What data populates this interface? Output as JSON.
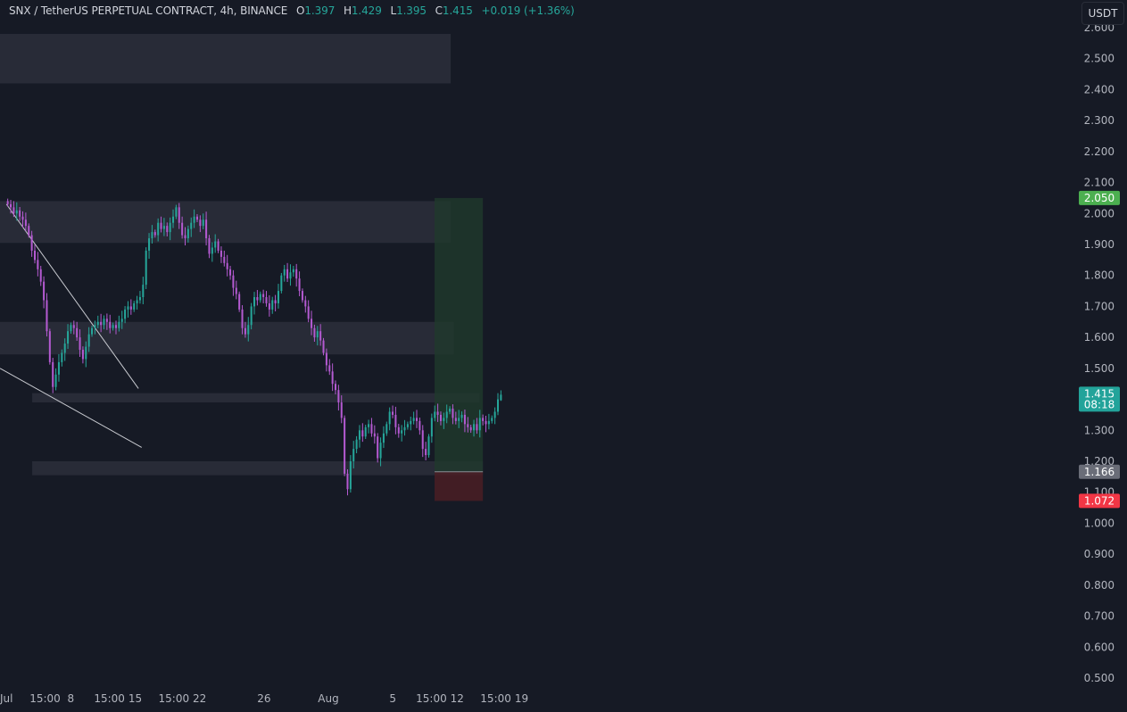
{
  "header": {
    "symbol": "SNX / TetherUS PERPETUAL CONTRACT, 4h, BINANCE",
    "o_label": "O",
    "o_value": "1.397",
    "h_label": "H",
    "h_value": "1.429",
    "l_label": "L",
    "l_value": "1.395",
    "c_label": "C",
    "c_value": "1.415",
    "change": "+0.019 (+1.36%)"
  },
  "currency_button": "USDT",
  "colors": {
    "background": "#161a25",
    "up": "#26a69a",
    "down": "#b45ad1",
    "grid_text": "#b2b5be",
    "zone": "#2c2f3b",
    "target_zone": "#1f3a2c",
    "stop_zone": "#4a1f25",
    "target_label": "#4caf50",
    "stop_label": "#f23645",
    "price_label": "#22a39a",
    "entry_label": "#6a6d78"
  },
  "chart_data": {
    "type": "candlestick",
    "title": "SNX / TetherUS PERPETUAL CONTRACT, 4h, BINANCE",
    "y_axis": {
      "ticks": [
        "2.600",
        "2.500",
        "2.400",
        "2.300",
        "2.200",
        "2.100",
        "2.000",
        "1.900",
        "1.800",
        "1.700",
        "1.600",
        "1.500",
        "1.400",
        "1.300",
        "1.200",
        "1.100",
        "1.000",
        "0.900",
        "0.800",
        "0.700",
        "0.600",
        "0.500"
      ],
      "range": [
        0.47,
        2.63
      ]
    },
    "x_axis": {
      "labels": [
        "Jul",
        "15:00",
        "8",
        "15:00",
        "15",
        "15:00",
        "22",
        "26",
        "Aug",
        "5",
        "15:00",
        "12",
        "15:00",
        "19"
      ],
      "range_days": [
        3.9,
        20.6
      ],
      "label_days": [
        4.0,
        4.6,
        5.0,
        5.6,
        6.0,
        6.6,
        7.0,
        8.0,
        9.0,
        10.0,
        10.6,
        11.0,
        11.6,
        12.0
      ]
    },
    "price_labels": [
      {
        "text": "2.050",
        "price": 2.05,
        "role": "target"
      },
      {
        "text": "1.415",
        "price": 1.415,
        "role": "last"
      },
      {
        "text": "08:18",
        "price": 1.415,
        "role": "countdown"
      },
      {
        "text": "1.166",
        "price": 1.166,
        "role": "entry"
      },
      {
        "text": "1.072",
        "price": 1.072,
        "role": "stop"
      }
    ],
    "zones": [
      {
        "day_start": 3.9,
        "day_end": 10.9,
        "low": 2.42,
        "high": 2.58
      },
      {
        "day_start": 3.9,
        "day_end": 10.9,
        "low": 1.905,
        "high": 2.04
      },
      {
        "day_start": 3.9,
        "day_end": 10.95,
        "low": 1.545,
        "high": 1.65
      },
      {
        "day_start": 4.4,
        "day_end": 11.35,
        "low": 1.39,
        "high": 1.42
      },
      {
        "day_start": 4.4,
        "day_end": 11.4,
        "low": 1.155,
        "high": 1.2
      }
    ],
    "position": {
      "day_start": 10.65,
      "day_end": 11.4,
      "target": 2.05,
      "entry": 1.166,
      "stop": 1.072
    },
    "trendlines": [
      {
        "from": [
          4.0,
          2.03
        ],
        "to": [
          6.05,
          1.435
        ]
      },
      {
        "from": [
          3.9,
          1.5
        ],
        "to": [
          6.1,
          1.245
        ]
      }
    ],
    "candles_close": [
      2.03,
      2.02,
      2.0,
      2.01,
      1.99,
      1.98,
      1.96,
      1.93,
      1.88,
      1.85,
      1.82,
      1.78,
      1.72,
      1.62,
      1.52,
      1.44,
      1.48,
      1.52,
      1.55,
      1.58,
      1.62,
      1.64,
      1.63,
      1.6,
      1.56,
      1.53,
      1.57,
      1.61,
      1.63,
      1.64,
      1.65,
      1.64,
      1.66,
      1.65,
      1.63,
      1.64,
      1.63,
      1.65,
      1.66,
      1.69,
      1.7,
      1.69,
      1.71,
      1.72,
      1.73,
      1.77,
      1.88,
      1.92,
      1.94,
      1.93,
      1.97,
      1.95,
      1.96,
      1.94,
      1.97,
      1.99,
      2.02,
      1.97,
      1.93,
      1.92,
      1.95,
      1.97,
      1.99,
      1.98,
      1.96,
      1.98,
      1.92,
      1.87,
      1.89,
      1.91,
      1.88,
      1.86,
      1.84,
      1.82,
      1.8,
      1.76,
      1.74,
      1.69,
      1.63,
      1.61,
      1.64,
      1.7,
      1.73,
      1.72,
      1.74,
      1.73,
      1.71,
      1.69,
      1.72,
      1.71,
      1.75,
      1.8,
      1.82,
      1.79,
      1.81,
      1.82,
      1.79,
      1.75,
      1.72,
      1.7,
      1.66,
      1.63,
      1.6,
      1.62,
      1.59,
      1.55,
      1.51,
      1.49,
      1.45,
      1.43,
      1.39,
      1.34,
      1.16,
      1.11,
      1.2,
      1.24,
      1.27,
      1.3,
      1.28,
      1.31,
      1.32,
      1.29,
      1.28,
      1.21,
      1.26,
      1.29,
      1.32,
      1.36,
      1.35,
      1.31,
      1.29,
      1.3,
      1.31,
      1.32,
      1.33,
      1.34,
      1.33,
      1.3,
      1.24,
      1.22,
      1.28,
      1.34,
      1.36,
      1.35,
      1.33,
      1.34,
      1.36,
      1.37,
      1.34,
      1.33,
      1.34,
      1.35,
      1.32,
      1.31,
      1.3,
      1.32,
      1.3,
      1.34,
      1.33,
      1.32,
      1.33,
      1.34,
      1.36,
      1.4,
      1.415
    ],
    "last": {
      "open": 1.397,
      "high": 1.429,
      "low": 1.395,
      "close": 1.415
    }
  }
}
